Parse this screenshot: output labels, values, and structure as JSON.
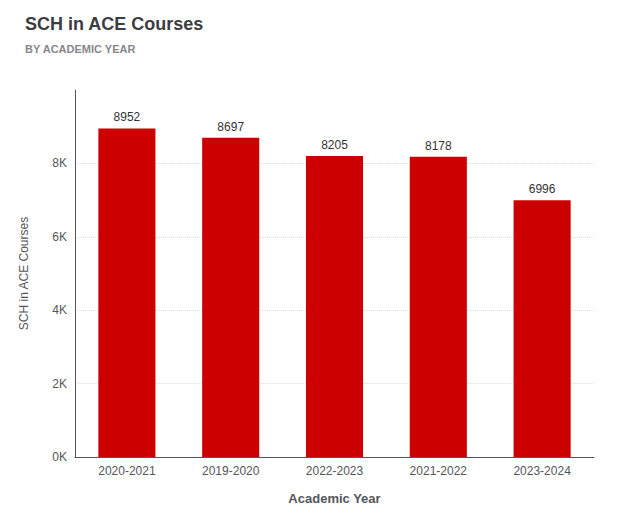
{
  "chart_data": {
    "type": "bar",
    "title": "SCH in ACE Courses",
    "subtitle": "BY ACADEMIC YEAR",
    "xlabel": "Academic Year",
    "ylabel": "SCH in ACE Courses",
    "categories": [
      "2020-2021",
      "2019-2020",
      "2022-2023",
      "2021-2022",
      "2023-2024"
    ],
    "values": [
      8952,
      8697,
      8205,
      8178,
      6996
    ],
    "color": "#CC0000",
    "ylim": [
      0,
      10000
    ],
    "yticks": [
      {
        "value": 0,
        "label": "0K"
      },
      {
        "value": 2000,
        "label": "2K"
      },
      {
        "value": 4000,
        "label": "4K"
      },
      {
        "value": 6000,
        "label": "6K"
      },
      {
        "value": 8000,
        "label": "8K"
      }
    ],
    "grid": true,
    "data_labels": true
  }
}
